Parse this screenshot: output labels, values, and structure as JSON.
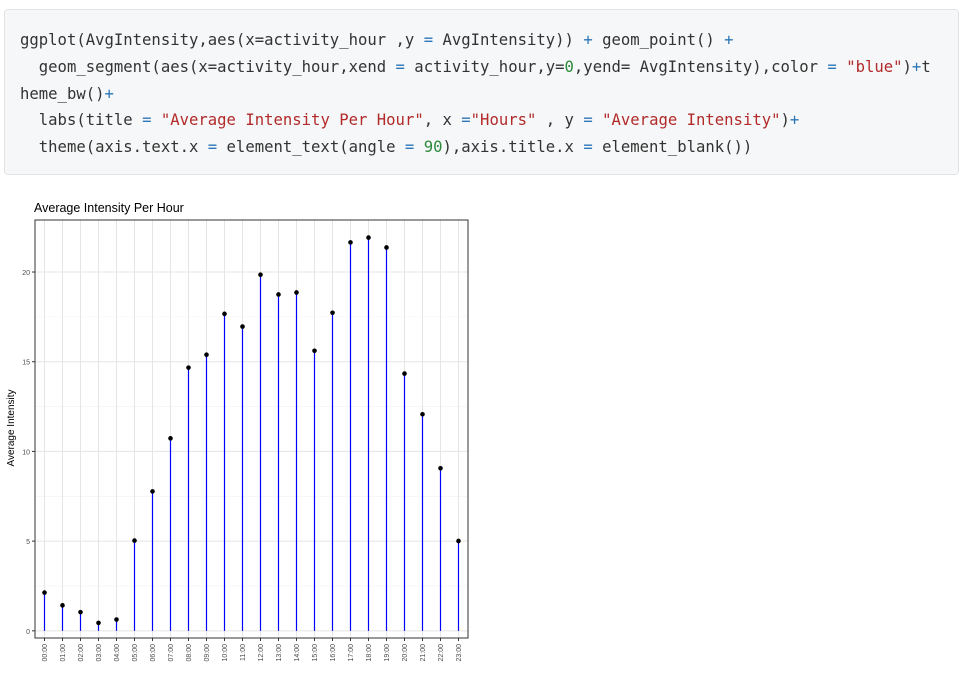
{
  "code": {
    "lines": [
      [
        {
          "t": "ggplot(AvgIntensity,aes(x=activity_hour ,y ",
          "k": "p"
        },
        {
          "t": "=",
          "k": "op"
        },
        {
          "t": " AvgIntensity)) ",
          "k": "p"
        },
        {
          "t": "+",
          "k": "op"
        },
        {
          "t": " geom_point() ",
          "k": "p"
        },
        {
          "t": "+",
          "k": "op"
        }
      ],
      [
        {
          "t": "  geom_segment(aes(x=activity_hour,xend ",
          "k": "p"
        },
        {
          "t": "=",
          "k": "op"
        },
        {
          "t": " activity_hour,y=",
          "k": "p"
        },
        {
          "t": "0",
          "k": "num"
        },
        {
          "t": ",yend= AvgIntensity),color ",
          "k": "p"
        },
        {
          "t": "=",
          "k": "op"
        },
        {
          "t": " ",
          "k": "p"
        },
        {
          "t": "\"blue\"",
          "k": "str"
        },
        {
          "t": ")",
          "k": "p"
        },
        {
          "t": "+",
          "k": "op"
        },
        {
          "t": "t",
          "k": "p"
        }
      ],
      [
        {
          "t": "heme_bw()",
          "k": "p"
        },
        {
          "t": "+",
          "k": "op"
        }
      ],
      [
        {
          "t": "  labs(title ",
          "k": "p"
        },
        {
          "t": "=",
          "k": "op"
        },
        {
          "t": " ",
          "k": "p"
        },
        {
          "t": "\"Average Intensity Per Hour\"",
          "k": "str"
        },
        {
          "t": ", x ",
          "k": "p"
        },
        {
          "t": "=",
          "k": "op"
        },
        {
          "t": "\"Hours\"",
          "k": "str"
        },
        {
          "t": " , y ",
          "k": "p"
        },
        {
          "t": "=",
          "k": "op"
        },
        {
          "t": " ",
          "k": "p"
        },
        {
          "t": "\"Average Intensity\"",
          "k": "str"
        },
        {
          "t": ")",
          "k": "p"
        },
        {
          "t": "+",
          "k": "op"
        }
      ],
      [
        {
          "t": "  theme(axis.text.x ",
          "k": "p"
        },
        {
          "t": "=",
          "k": "op"
        },
        {
          "t": " element_text(angle ",
          "k": "p"
        },
        {
          "t": "=",
          "k": "op"
        },
        {
          "t": " ",
          "k": "p"
        },
        {
          "t": "90",
          "k": "num"
        },
        {
          "t": "),axis.title.x ",
          "k": "p"
        },
        {
          "t": "=",
          "k": "op"
        },
        {
          "t": " element_blank())",
          "k": "p"
        }
      ]
    ]
  },
  "chart_data": {
    "type": "lollipop",
    "title": "Average Intensity Per Hour",
    "xlabel": "",
    "ylabel": "Average Intensity",
    "categories": [
      "00:00",
      "01:00",
      "02:00",
      "03:00",
      "04:00",
      "05:00",
      "06:00",
      "07:00",
      "08:00",
      "09:00",
      "10:00",
      "11:00",
      "12:00",
      "13:00",
      "14:00",
      "15:00",
      "16:00",
      "17:00",
      "18:00",
      "19:00",
      "20:00",
      "21:00",
      "22:00",
      "23:00"
    ],
    "values": [
      2.13,
      1.42,
      1.04,
      0.44,
      0.63,
      5.03,
      7.77,
      10.73,
      14.67,
      15.39,
      17.67,
      16.96,
      19.85,
      18.75,
      18.86,
      15.61,
      17.73,
      21.65,
      21.92,
      21.37,
      14.34,
      12.07,
      9.06,
      5.01
    ],
    "yticks": [
      0,
      5,
      10,
      15,
      20
    ],
    "ylim": [
      -0.4,
      22.9
    ],
    "segment_color": "#0000ff",
    "point_color": "#000000",
    "grid": true,
    "theme": "bw"
  }
}
